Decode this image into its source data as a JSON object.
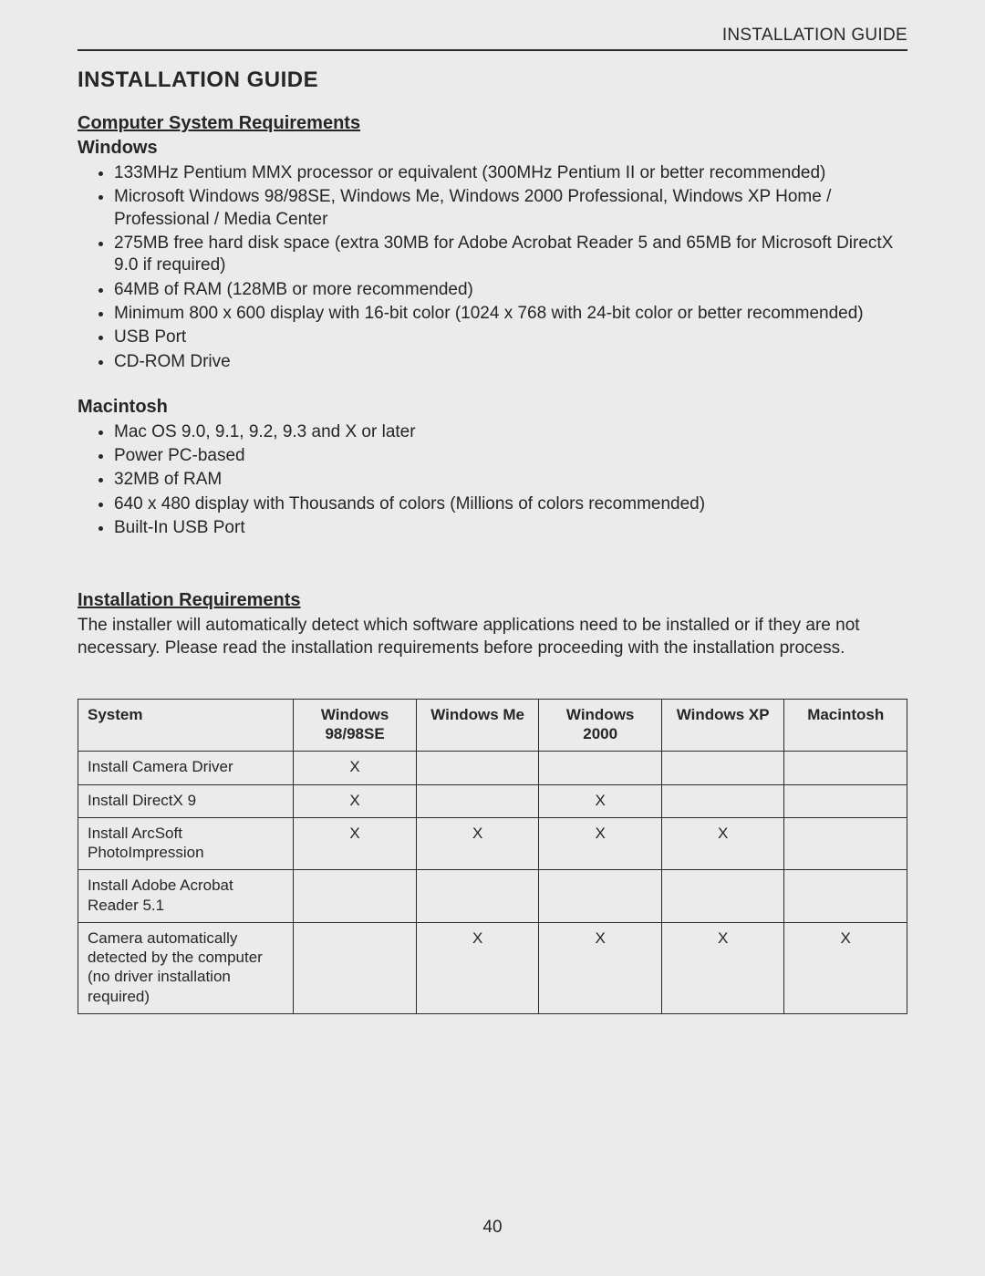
{
  "runningHead": "INSTALLATION GUIDE",
  "title": "INSTALLATION GUIDE",
  "sectionA": {
    "heading": "Computer System Requirements",
    "windows": {
      "label": "Windows",
      "items": [
        "133MHz Pentium MMX processor or equivalent (300MHz Pentium II or better recommended)",
        "Microsoft Windows 98/98SE, Windows Me, Windows 2000 Professional, Windows XP Home / Professional / Media Center",
        "275MB free hard disk space (extra 30MB for Adobe Acrobat Reader 5 and 65MB for Microsoft DirectX 9.0 if required)",
        "64MB of RAM (128MB or more recommended)",
        "Minimum 800 x 600 display with 16-bit color (1024 x 768 with 24-bit color or better recommended)",
        "USB Port",
        "CD-ROM Drive"
      ]
    },
    "mac": {
      "label": "Macintosh",
      "items": [
        "Mac OS 9.0, 9.1, 9.2, 9.3 and X or later",
        "Power PC-based",
        "32MB of RAM",
        "640 x 480 display with Thousands of colors (Millions of colors recommended)",
        "Built-In USB Port"
      ]
    }
  },
  "sectionB": {
    "heading": "Installation Requirements",
    "paragraph": "The installer will automatically detect which software applications need to be installed or if they are not necessary.  Please read the installation requirements before proceeding with the installation process."
  },
  "table": {
    "mark": "X",
    "columns": [
      "System",
      "Windows 98/98SE",
      "Windows Me",
      "Windows 2000",
      "Windows XP",
      "Macintosh"
    ],
    "rows": [
      {
        "label": "Install Camera Driver",
        "cells": [
          true,
          false,
          false,
          false,
          false
        ]
      },
      {
        "label": "Install DirectX 9",
        "cells": [
          true,
          false,
          true,
          false,
          false
        ]
      },
      {
        "label": "Install ArcSoft PhotoImpression",
        "cells": [
          true,
          true,
          true,
          true,
          false
        ]
      },
      {
        "label": "Install Adobe Acrobat Reader 5.1",
        "cells": [
          false,
          false,
          false,
          false,
          false
        ]
      },
      {
        "label": "Camera automatically detected by the computer (no driver installation required)",
        "cells": [
          false,
          true,
          true,
          true,
          true
        ]
      }
    ]
  },
  "pageNumber": "40"
}
